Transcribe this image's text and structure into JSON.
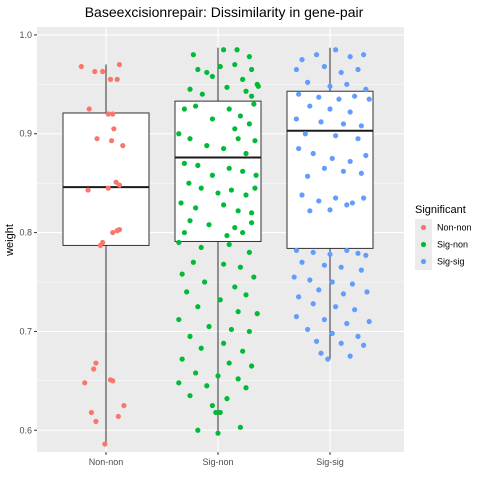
{
  "chart_data": {
    "type": "boxplot-jitter",
    "title": "Baseexcisionrepair: Dissimilarity in gene-pair",
    "xlabel": "",
    "ylabel": "weight",
    "categories": [
      "Non-non",
      "Sig-non",
      "Sig-sig"
    ],
    "ylim": [
      0.578,
      1.008
    ],
    "yticks": [
      0.6,
      0.7,
      0.8,
      0.9,
      1.0
    ],
    "ytick_labels": [
      "0.6",
      "0.7",
      "0.8",
      "0.9",
      "1.0"
    ],
    "grid": true,
    "legend": {
      "title": "Significant",
      "position": "right",
      "entries": [
        "Non-non",
        "Sig-non",
        "Sig-sig"
      ]
    },
    "colors": {
      "Non-non": "#F8766D",
      "Sig-non": "#00BA38",
      "Sig-sig": "#619CFF",
      "panel": "#EBEBEB",
      "grid": "#FFFFFF"
    },
    "boxes": [
      {
        "category": "Non-non",
        "whisker_low": 0.587,
        "q1": 0.787,
        "median": 0.846,
        "q3": 0.921,
        "whisker_high": 0.97
      },
      {
        "category": "Sig-non",
        "whisker_low": 0.597,
        "q1": 0.791,
        "median": 0.876,
        "q3": 0.933,
        "whisker_high": 0.987
      },
      {
        "category": "Sig-sig",
        "whisker_low": 0.672,
        "q1": 0.784,
        "median": 0.903,
        "q3": 0.943,
        "whisker_high": 0.987
      }
    ],
    "series": [
      {
        "name": "Non-non",
        "points": [
          [
            -0.22,
            0.968
          ],
          [
            -0.1,
            0.963
          ],
          [
            0.04,
            0.955
          ],
          [
            0.12,
            0.97
          ],
          [
            0.1,
            0.955
          ],
          [
            -0.03,
            0.963
          ],
          [
            -0.15,
            0.925
          ],
          [
            0.02,
            0.92
          ],
          [
            0.06,
            0.92
          ],
          [
            0.07,
            0.905
          ],
          [
            -0.08,
            0.895
          ],
          [
            0.05,
            0.893
          ],
          [
            0.15,
            0.888
          ],
          [
            0.09,
            0.851
          ],
          [
            0.12,
            0.848
          ],
          [
            -0.16,
            0.843
          ],
          [
            0.02,
            0.845
          ],
          [
            0.06,
            0.8
          ],
          [
            0.1,
            0.802
          ],
          [
            0.12,
            0.803
          ],
          [
            -0.03,
            0.79
          ],
          [
            -0.05,
            0.787
          ],
          [
            -0.09,
            0.668
          ],
          [
            -0.11,
            0.662
          ],
          [
            0.04,
            0.651
          ],
          [
            0.06,
            0.65
          ],
          [
            -0.19,
            0.648
          ],
          [
            0.16,
            0.625
          ],
          [
            -0.13,
            0.618
          ],
          [
            0.11,
            0.614
          ],
          [
            -0.09,
            0.609
          ],
          [
            -0.01,
            0.586
          ]
        ]
      },
      {
        "name": "Sig-non",
        "points": [
          [
            -0.22,
            0.98
          ],
          [
            0.05,
            0.985
          ],
          [
            0.17,
            0.985
          ],
          [
            0.28,
            0.978
          ],
          [
            -0.18,
            0.965
          ],
          [
            -0.1,
            0.962
          ],
          [
            0.02,
            0.968
          ],
          [
            0.15,
            0.97
          ],
          [
            0.3,
            0.965
          ],
          [
            -0.05,
            0.958
          ],
          [
            0.22,
            0.955
          ],
          [
            0.35,
            0.95
          ],
          [
            -0.25,
            0.945
          ],
          [
            0.25,
            0.943
          ],
          [
            0.3,
            0.938
          ],
          [
            0.08,
            0.947
          ],
          [
            -0.14,
            0.94
          ],
          [
            0.36,
            0.948
          ],
          [
            -0.3,
            0.925
          ],
          [
            -0.2,
            0.928
          ],
          [
            0.1,
            0.925
          ],
          [
            0.2,
            0.918
          ],
          [
            0.32,
            0.93
          ],
          [
            -0.05,
            0.915
          ],
          [
            0.15,
            0.905
          ],
          [
            0.28,
            0.91
          ],
          [
            -0.35,
            0.9
          ],
          [
            -0.25,
            0.895
          ],
          [
            0.18,
            0.895
          ],
          [
            0.33,
            0.893
          ],
          [
            -0.1,
            0.888
          ],
          [
            0.05,
            0.885
          ],
          [
            0.25,
            0.88
          ],
          [
            -0.3,
            0.87
          ],
          [
            -0.18,
            0.868
          ],
          [
            0.1,
            0.865
          ],
          [
            0.22,
            0.862
          ],
          [
            -0.05,
            0.858
          ],
          [
            0.34,
            0.858
          ],
          [
            -0.26,
            0.85
          ],
          [
            -0.15,
            0.845
          ],
          [
            0.0,
            0.84
          ],
          [
            0.12,
            0.843
          ],
          [
            0.25,
            0.838
          ],
          [
            0.33,
            0.845
          ],
          [
            -0.33,
            0.83
          ],
          [
            -0.2,
            0.825
          ],
          [
            0.05,
            0.828
          ],
          [
            0.18,
            0.822
          ],
          [
            0.3,
            0.82
          ],
          [
            -0.25,
            0.812
          ],
          [
            -0.08,
            0.808
          ],
          [
            0.15,
            0.805
          ],
          [
            0.3,
            0.81
          ],
          [
            -0.3,
            0.8
          ],
          [
            0.08,
            0.797
          ],
          [
            0.22,
            0.8
          ],
          [
            -0.35,
            0.79
          ],
          [
            -0.15,
            0.785
          ],
          [
            0.1,
            0.788
          ],
          [
            0.28,
            0.78
          ],
          [
            -0.22,
            0.77
          ],
          [
            0.05,
            0.768
          ],
          [
            0.2,
            0.765
          ],
          [
            -0.32,
            0.758
          ],
          [
            0.32,
            0.755
          ],
          [
            -0.12,
            0.75
          ],
          [
            0.15,
            0.745
          ],
          [
            -0.28,
            0.74
          ],
          [
            0.25,
            0.737
          ],
          [
            0.02,
            0.732
          ],
          [
            -0.18,
            0.725
          ],
          [
            0.18,
            0.72
          ],
          [
            0.35,
            0.718
          ],
          [
            -0.35,
            0.712
          ],
          [
            -0.08,
            0.705
          ],
          [
            0.12,
            0.702
          ],
          [
            0.28,
            0.7
          ],
          [
            -0.25,
            0.695
          ],
          [
            0.05,
            0.688
          ],
          [
            -0.15,
            0.683
          ],
          [
            0.22,
            0.68
          ],
          [
            -0.32,
            0.672
          ],
          [
            0.1,
            0.668
          ],
          [
            0.3,
            0.665
          ],
          [
            -0.2,
            0.658
          ],
          [
            0.0,
            0.655
          ],
          [
            0.18,
            0.652
          ],
          [
            -0.35,
            0.648
          ],
          [
            -0.1,
            0.645
          ],
          [
            0.25,
            0.643
          ],
          [
            -0.25,
            0.635
          ],
          [
            0.08,
            0.632
          ],
          [
            -0.05,
            0.625
          ],
          [
            0.02,
            0.618
          ],
          [
            -0.02,
            0.618
          ],
          [
            0.2,
            0.603
          ],
          [
            -0.18,
            0.6
          ],
          [
            0.0,
            0.597
          ]
        ]
      },
      {
        "name": "Sig-sig",
        "points": [
          [
            -0.25,
            0.975
          ],
          [
            -0.12,
            0.98
          ],
          [
            0.05,
            0.985
          ],
          [
            0.18,
            0.978
          ],
          [
            0.3,
            0.98
          ],
          [
            -0.3,
            0.965
          ],
          [
            -0.05,
            0.968
          ],
          [
            0.1,
            0.962
          ],
          [
            0.25,
            0.965
          ],
          [
            -0.2,
            0.952
          ],
          [
            0.0,
            0.948
          ],
          [
            0.15,
            0.95
          ],
          [
            0.32,
            0.945
          ],
          [
            -0.28,
            0.94
          ],
          [
            -0.1,
            0.937
          ],
          [
            0.08,
            0.935
          ],
          [
            0.22,
            0.938
          ],
          [
            0.35,
            0.935
          ],
          [
            -0.18,
            0.928
          ],
          [
            0.0,
            0.925
          ],
          [
            0.18,
            0.922
          ],
          [
            -0.3,
            0.915
          ],
          [
            -0.08,
            0.912
          ],
          [
            0.12,
            0.91
          ],
          [
            0.28,
            0.908
          ],
          [
            -0.22,
            0.9
          ],
          [
            0.05,
            0.898
          ],
          [
            0.25,
            0.895
          ],
          [
            -0.28,
            0.885
          ],
          [
            -0.15,
            0.88
          ],
          [
            0.02,
            0.875
          ],
          [
            0.18,
            0.872
          ],
          [
            0.32,
            0.878
          ],
          [
            -0.05,
            0.865
          ],
          [
            0.12,
            0.862
          ],
          [
            0.28,
            0.86
          ],
          [
            -0.2,
            0.857
          ],
          [
            -0.25,
            0.838
          ],
          [
            -0.1,
            0.832
          ],
          [
            0.05,
            0.835
          ],
          [
            0.2,
            0.83
          ],
          [
            0.3,
            0.835
          ],
          [
            0.0,
            0.823
          ],
          [
            0.15,
            0.828
          ],
          [
            -0.18,
            0.822
          ],
          [
            -0.3,
            0.782
          ],
          [
            -0.15,
            0.78
          ],
          [
            0.0,
            0.778
          ],
          [
            0.15,
            0.782
          ],
          [
            0.25,
            0.779
          ],
          [
            0.32,
            0.777
          ],
          [
            -0.25,
            0.77
          ],
          [
            -0.05,
            0.767
          ],
          [
            0.1,
            0.765
          ],
          [
            0.28,
            0.762
          ],
          [
            -0.32,
            0.755
          ],
          [
            -0.18,
            0.752
          ],
          [
            0.02,
            0.75
          ],
          [
            0.2,
            0.748
          ],
          [
            -0.1,
            0.742
          ],
          [
            0.12,
            0.738
          ],
          [
            0.33,
            0.74
          ],
          [
            -0.28,
            0.735
          ],
          [
            -0.15,
            0.728
          ],
          [
            0.05,
            0.725
          ],
          [
            0.22,
            0.722
          ],
          [
            -0.3,
            0.715
          ],
          [
            -0.05,
            0.712
          ],
          [
            0.15,
            0.708
          ],
          [
            0.35,
            0.71
          ],
          [
            -0.2,
            0.702
          ],
          [
            0.02,
            0.698
          ],
          [
            0.25,
            0.695
          ],
          [
            -0.12,
            0.69
          ],
          [
            0.1,
            0.688
          ],
          [
            0.3,
            0.686
          ],
          [
            -0.08,
            0.678
          ],
          [
            0.18,
            0.675
          ],
          [
            -0.02,
            0.672
          ]
        ]
      }
    ]
  }
}
